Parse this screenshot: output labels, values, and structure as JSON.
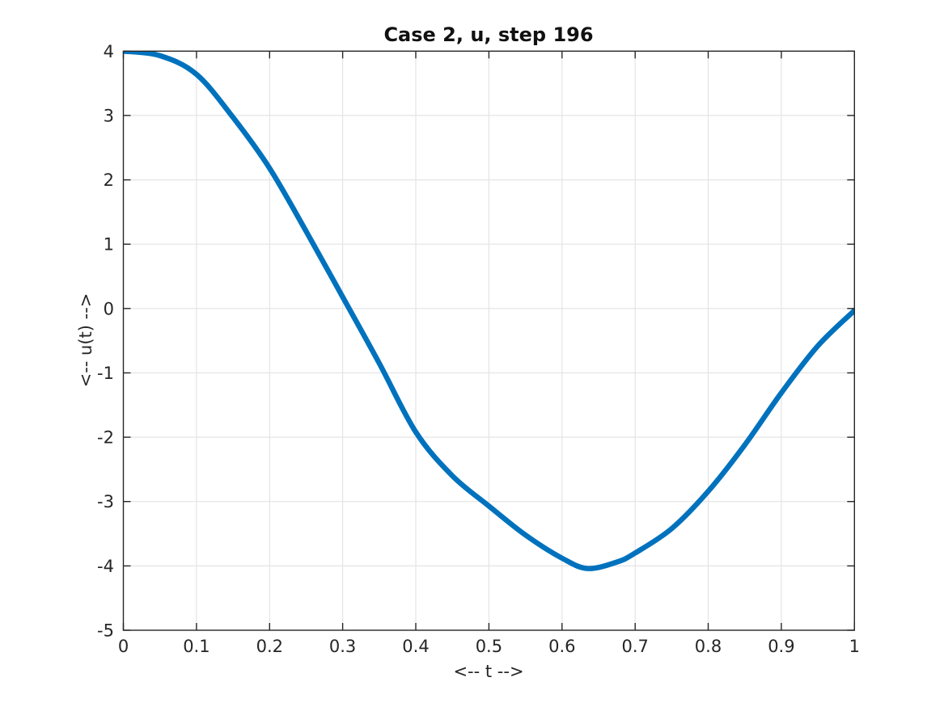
{
  "chart_data": {
    "type": "line",
    "title": "Case 2, u, step 196",
    "xlabel": "<-- t -->",
    "ylabel": "<-- u(t) -->",
    "xlim": [
      0,
      1
    ],
    "ylim": [
      -5,
      4
    ],
    "xticks": [
      0,
      0.1,
      0.2,
      0.3,
      0.4,
      0.5,
      0.6,
      0.7,
      0.8,
      0.9,
      1
    ],
    "xtick_labels": [
      "0",
      "0.1",
      "0.2",
      "0.3",
      "0.4",
      "0.5",
      "0.6",
      "0.7",
      "0.8",
      "0.9",
      "1"
    ],
    "yticks": [
      -5,
      -4,
      -3,
      -2,
      -1,
      0,
      1,
      2,
      3,
      4
    ],
    "ytick_labels": [
      "-5",
      "-4",
      "-3",
      "-2",
      "-1",
      "0",
      "1",
      "2",
      "3",
      "4"
    ],
    "grid": true,
    "legend": "none",
    "series": [
      {
        "name": "u",
        "x": [
          0,
          0.05,
          0.1,
          0.15,
          0.2,
          0.25,
          0.3,
          0.35,
          0.4,
          0.45,
          0.5,
          0.55,
          0.6,
          0.635,
          0.675,
          0.7,
          0.75,
          0.8,
          0.85,
          0.9,
          0.95,
          1
        ],
        "y": [
          4.0,
          3.93,
          3.64,
          2.97,
          2.18,
          1.2,
          0.18,
          -0.85,
          -1.92,
          -2.6,
          -3.07,
          -3.52,
          -3.88,
          -4.04,
          -3.94,
          -3.8,
          -3.42,
          -2.84,
          -2.12,
          -1.31,
          -0.58,
          -0.03
        ]
      }
    ]
  },
  "colors": {
    "line": "#0072BD",
    "axis": "#262626",
    "grid": "#e4e4e4",
    "background": "#ffffff",
    "title_text": "#111111",
    "tick_text": "#262626"
  }
}
